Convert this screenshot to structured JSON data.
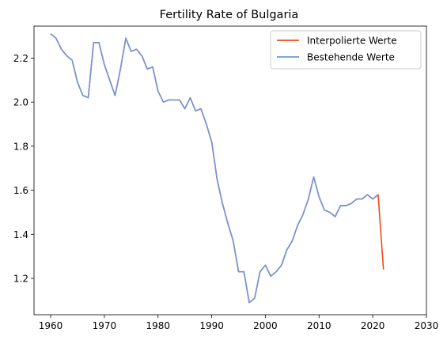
{
  "chart_data": {
    "type": "line",
    "title": "Fertility Rate of Bulgaria",
    "xlabel": "",
    "ylabel": "",
    "xlim": [
      1956.9,
      2030
    ],
    "ylim": [
      1.035,
      2.345
    ],
    "x_ticks": [
      1960,
      1970,
      1980,
      1990,
      2000,
      2010,
      2020,
      2030
    ],
    "y_ticks": [
      1.2,
      1.4,
      1.6,
      1.8,
      2.0,
      2.2
    ],
    "x_tick_labels": [
      "1960",
      "1970",
      "1980",
      "1990",
      "2000",
      "2010",
      "2020",
      "2030"
    ],
    "y_tick_labels": [
      "1.2",
      "1.4",
      "1.6",
      "1.8",
      "2.0",
      "2.2"
    ],
    "grid": false,
    "legend_position": "top-right",
    "series": [
      {
        "name": "Interpolierte Werte",
        "color": "#EE4B1A",
        "x": [
          1960,
          1961,
          1962,
          1963,
          1964,
          1965,
          1966,
          1967,
          1968,
          1969,
          1970,
          1971,
          1972,
          1973,
          1974,
          1975,
          1976,
          1977,
          1978,
          1979,
          1980,
          1981,
          1982,
          1983,
          1984,
          1985,
          1986,
          1987,
          1988,
          1989,
          1990,
          1991,
          1992,
          1993,
          1994,
          1995,
          1996,
          1997,
          1998,
          1999,
          2000,
          2001,
          2002,
          2003,
          2004,
          2005,
          2006,
          2007,
          2008,
          2009,
          2010,
          2011,
          2012,
          2013,
          2014,
          2015,
          2016,
          2017,
          2018,
          2019,
          2020,
          2021,
          2022
        ],
        "y": [
          2.31,
          2.29,
          2.24,
          2.21,
          2.19,
          2.09,
          2.03,
          2.02,
          2.27,
          2.27,
          2.17,
          2.1,
          2.03,
          2.15,
          2.29,
          2.23,
          2.24,
          2.21,
          2.15,
          2.16,
          2.05,
          2.0,
          2.01,
          2.01,
          2.01,
          1.97,
          2.02,
          1.96,
          1.97,
          1.9,
          1.82,
          1.65,
          1.54,
          1.45,
          1.37,
          1.23,
          1.23,
          1.09,
          1.11,
          1.23,
          1.26,
          1.21,
          1.23,
          1.26,
          1.33,
          1.37,
          1.44,
          1.49,
          1.56,
          1.66,
          1.57,
          1.51,
          1.5,
          1.48,
          1.53,
          1.53,
          1.54,
          1.56,
          1.56,
          1.58,
          1.56,
          1.58,
          1.24
        ]
      },
      {
        "name": "Bestehende Werte",
        "color": "#6F97DC",
        "x": [
          1960,
          1961,
          1962,
          1963,
          1964,
          1965,
          1966,
          1967,
          1968,
          1969,
          1970,
          1971,
          1972,
          1973,
          1974,
          1975,
          1976,
          1977,
          1978,
          1979,
          1980,
          1981,
          1982,
          1983,
          1984,
          1985,
          1986,
          1987,
          1988,
          1989,
          1990,
          1991,
          1992,
          1993,
          1994,
          1995,
          1996,
          1997,
          1998,
          1999,
          2000,
          2001,
          2002,
          2003,
          2004,
          2005,
          2006,
          2007,
          2008,
          2009,
          2010,
          2011,
          2012,
          2013,
          2014,
          2015,
          2016,
          2017,
          2018,
          2019,
          2020,
          2021
        ],
        "y": [
          2.31,
          2.29,
          2.24,
          2.21,
          2.19,
          2.09,
          2.03,
          2.02,
          2.27,
          2.27,
          2.17,
          2.1,
          2.03,
          2.15,
          2.29,
          2.23,
          2.24,
          2.21,
          2.15,
          2.16,
          2.05,
          2.0,
          2.01,
          2.01,
          2.01,
          1.97,
          2.02,
          1.96,
          1.97,
          1.9,
          1.82,
          1.65,
          1.54,
          1.45,
          1.37,
          1.23,
          1.23,
          1.09,
          1.11,
          1.23,
          1.26,
          1.21,
          1.23,
          1.26,
          1.33,
          1.37,
          1.44,
          1.49,
          1.56,
          1.66,
          1.57,
          1.51,
          1.5,
          1.48,
          1.53,
          1.53,
          1.54,
          1.56,
          1.56,
          1.58,
          1.56,
          1.58
        ]
      }
    ]
  }
}
